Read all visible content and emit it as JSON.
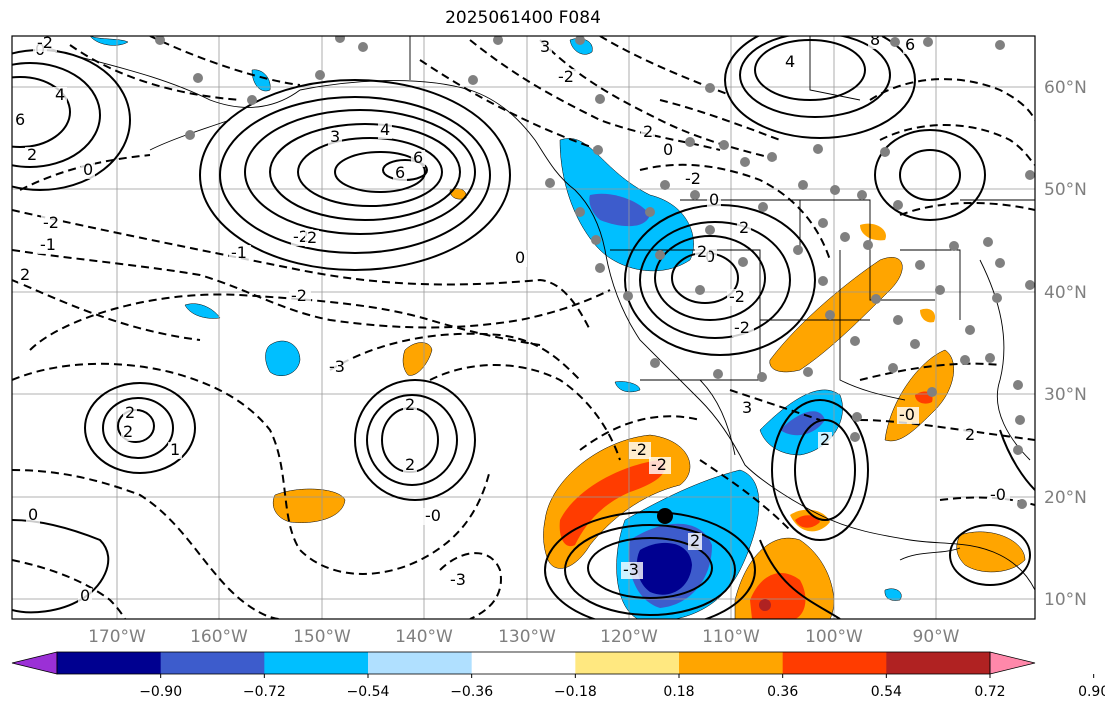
{
  "title": "2025061400 F084",
  "map": {
    "lat_labels": [
      "60°N",
      "50°N",
      "40°N",
      "30°N",
      "20°N",
      "10°N"
    ],
    "lon_labels": [
      "170°W",
      "160°W",
      "150°W",
      "140°W",
      "130°W",
      "120°W",
      "110°W",
      "100°W",
      "90°W"
    ],
    "contour_labels": [
      "6",
      "4",
      "2",
      "0",
      "0",
      "3",
      "4",
      "6",
      "6",
      "-2",
      "-1",
      "-2",
      "2",
      "2",
      "0",
      "-2",
      "-3",
      "-3",
      "2",
      "1",
      "2",
      "2",
      "2",
      "-2",
      "-0",
      "0",
      "-2",
      "2",
      "2",
      "-0",
      "-2",
      "-3",
      "-2",
      "-1",
      "2",
      "8",
      "4",
      "6",
      "3",
      "-2",
      "2",
      "0",
      "-2",
      "0",
      "2",
      "-2",
      "0",
      "0",
      "3",
      "2",
      "-0"
    ]
  },
  "colorbar": {
    "colors": [
      "#9b30d6",
      "#000090",
      "#3d5ccc",
      "#00bfff",
      "#b0e0ff",
      "#ffffff",
      "#ffe880",
      "#ffa500",
      "#ff3c00",
      "#b02222",
      "#ff88aa"
    ],
    "tick_labels": [
      "−0.90",
      "−0.72",
      "−0.54",
      "−0.36",
      "−0.18",
      "0.18",
      "0.36",
      "0.54",
      "0.72",
      "0.90"
    ]
  }
}
